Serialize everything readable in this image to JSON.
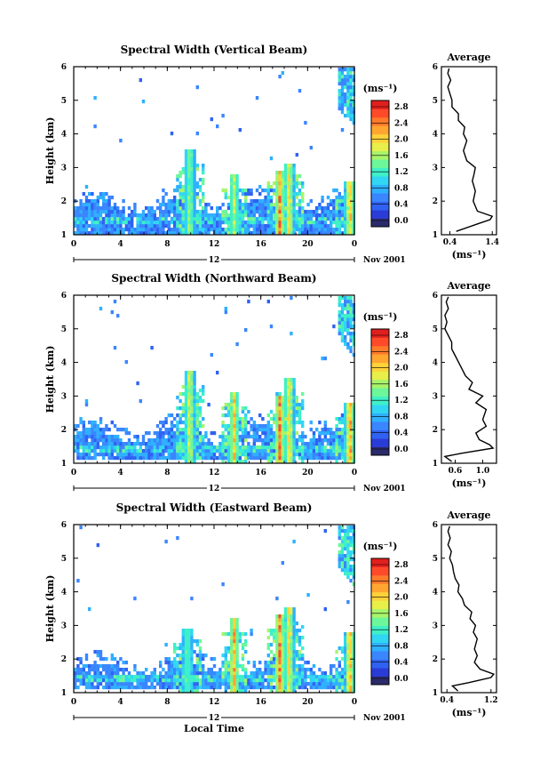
{
  "figure": {
    "date_label": "Nov 2001",
    "day_label": "12",
    "x_label": "Local Time",
    "y_label": "Height (km)",
    "colorbar_unit": "(ms⁻¹)",
    "avg_title": "Average",
    "avg_unit": "(ms⁻¹)"
  },
  "colorbar": {
    "ticks": [
      "0.0",
      "0.4",
      "0.8",
      "1.2",
      "1.6",
      "2.0",
      "2.4",
      "2.8"
    ],
    "colors": [
      "#2b2b6b",
      "#2a3cd8",
      "#2f62f2",
      "#3a86ff",
      "#2fb0ff",
      "#31d6f2",
      "#3ef0c8",
      "#6cf79a",
      "#a8f46a",
      "#e8ef4a",
      "#ffd23a",
      "#ffa630",
      "#ff7a2a",
      "#ff4a2a",
      "#e0201e"
    ]
  },
  "chart_data": [
    {
      "type": "heatmap",
      "title": "Spectral Width (Vertical Beam)",
      "xlabel": "Local Time",
      "ylabel": "Height (km)",
      "x_ticks": [
        "0",
        "4",
        "8",
        "12",
        "16",
        "20",
        "0"
      ],
      "y_ticks": [
        "1",
        "2",
        "3",
        "4",
        "5",
        "6"
      ],
      "xlim": [
        0,
        24
      ],
      "ylim": [
        1,
        6
      ],
      "colorbar_range": [
        0.0,
        2.8
      ],
      "hotspots": [
        {
          "time": 9.8,
          "height_top": 3.6,
          "value": 1.8
        },
        {
          "time": 13.6,
          "height_top": 2.8,
          "value": 2.0
        },
        {
          "time": 17.5,
          "height_top": 3.0,
          "value": 2.8
        },
        {
          "time": 18.3,
          "height_top": 3.2,
          "value": 2.4
        },
        {
          "time": 23.5,
          "height_top": 2.6,
          "value": 2.6
        }
      ],
      "average": {
        "xlabel": "(ms⁻¹)",
        "x_ticks": [
          "0.4",
          "1.4"
        ],
        "xlim": [
          0.2,
          1.5
        ],
        "y_ticks": [
          "1",
          "2",
          "3",
          "4",
          "5",
          "6"
        ],
        "profile": {
          "height": [
            1.1,
            1.3,
            1.45,
            1.55,
            1.7,
            2.0,
            2.3,
            2.6,
            2.8,
            3.0,
            3.2,
            3.5,
            3.8,
            4.0,
            4.2,
            4.4,
            4.6,
            4.8,
            5.0,
            5.2,
            5.4,
            5.6,
            5.8,
            5.95
          ],
          "value": [
            0.55,
            1.0,
            1.35,
            1.4,
            1.05,
            0.95,
            1.0,
            0.93,
            0.97,
            1.0,
            0.8,
            0.72,
            0.8,
            0.72,
            0.75,
            0.6,
            0.6,
            0.45,
            0.45,
            0.4,
            0.35,
            0.42,
            0.35,
            0.38
          ]
        }
      }
    },
    {
      "type": "heatmap",
      "title": "Spectral Width (Northward Beam)",
      "xlabel": "Local Time",
      "ylabel": "Height (km)",
      "x_ticks": [
        "0",
        "4",
        "8",
        "12",
        "16",
        "20",
        "0"
      ],
      "y_ticks": [
        "1",
        "2",
        "3",
        "4",
        "5",
        "6"
      ],
      "xlim": [
        0,
        24
      ],
      "ylim": [
        1,
        6
      ],
      "colorbar_range": [
        0.0,
        2.8
      ],
      "hotspots": [
        {
          "time": 9.8,
          "height_top": 3.8,
          "value": 2.2
        },
        {
          "time": 13.6,
          "height_top": 3.2,
          "value": 2.4
        },
        {
          "time": 17.5,
          "height_top": 3.1,
          "value": 2.8
        },
        {
          "time": 18.3,
          "height_top": 3.6,
          "value": 2.4
        },
        {
          "time": 23.5,
          "height_top": 2.8,
          "value": 2.8
        }
      ],
      "average": {
        "xlabel": "(ms⁻¹)",
        "x_ticks": [
          "0.6",
          "1.0"
        ],
        "xlim": [
          0.4,
          1.2
        ],
        "y_ticks": [
          "1",
          "2",
          "3",
          "4",
          "5",
          "6"
        ],
        "profile": {
          "height": [
            1.05,
            1.2,
            1.3,
            1.45,
            1.55,
            1.7,
            1.9,
            2.1,
            2.3,
            2.6,
            2.8,
            3.0,
            3.2,
            3.4,
            3.6,
            3.8,
            4.0,
            4.2,
            4.4,
            4.6,
            4.8,
            5.0,
            5.2,
            5.4,
            5.6,
            5.8,
            5.95
          ],
          "value": [
            0.55,
            0.45,
            0.7,
            1.15,
            1.1,
            0.95,
            0.9,
            1.05,
            1.0,
            1.05,
            0.9,
            1.0,
            0.8,
            0.85,
            0.75,
            0.7,
            0.65,
            0.6,
            0.55,
            0.55,
            0.5,
            0.45,
            0.48,
            0.45,
            0.5,
            0.47,
            0.5
          ]
        }
      }
    },
    {
      "type": "heatmap",
      "title": "Spectral Width (Eastward Beam)",
      "xlabel": "Local Time",
      "ylabel": "Height (km)",
      "x_ticks": [
        "0",
        "4",
        "8",
        "12",
        "16",
        "20",
        "0"
      ],
      "y_ticks": [
        "1",
        "2",
        "3",
        "4",
        "5",
        "6"
      ],
      "xlim": [
        0,
        24
      ],
      "ylim": [
        1,
        6
      ],
      "colorbar_range": [
        0.0,
        2.8
      ],
      "hotspots": [
        {
          "time": 9.6,
          "height_top": 3.0,
          "value": 1.6
        },
        {
          "time": 13.6,
          "height_top": 3.3,
          "value": 2.6
        },
        {
          "time": 17.5,
          "height_top": 3.4,
          "value": 2.8
        },
        {
          "time": 18.3,
          "height_top": 3.6,
          "value": 2.4
        },
        {
          "time": 23.5,
          "height_top": 2.8,
          "value": 2.6
        }
      ],
      "average": {
        "xlabel": "(ms⁻¹)",
        "x_ticks": [
          "0.4",
          "1.2"
        ],
        "xlim": [
          0.3,
          1.3
        ],
        "y_ticks": [
          "1",
          "2",
          "3",
          "4",
          "5",
          "6"
        ],
        "profile": {
          "height": [
            1.05,
            1.2,
            1.3,
            1.45,
            1.55,
            1.7,
            1.9,
            2.1,
            2.3,
            2.6,
            2.8,
            3.0,
            3.2,
            3.4,
            3.6,
            3.8,
            4.0,
            4.2,
            4.4,
            4.6,
            4.8,
            5.0,
            5.2,
            5.4,
            5.6,
            5.8,
            5.95
          ],
          "value": [
            0.6,
            0.5,
            0.8,
            1.2,
            1.25,
            1.0,
            0.9,
            0.95,
            0.9,
            0.95,
            0.88,
            0.92,
            0.82,
            0.85,
            0.72,
            0.68,
            0.6,
            0.62,
            0.55,
            0.52,
            0.5,
            0.45,
            0.48,
            0.42,
            0.46,
            0.42,
            0.45
          ]
        }
      }
    }
  ]
}
